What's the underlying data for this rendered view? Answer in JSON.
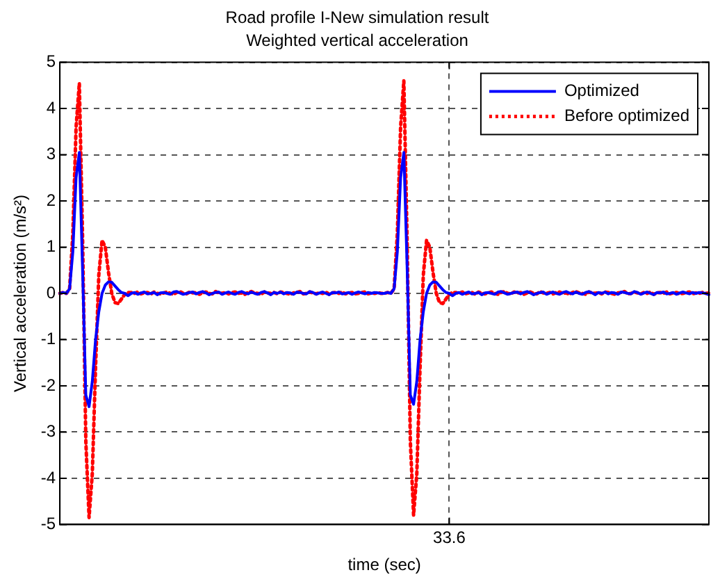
{
  "chart_data": {
    "type": "line",
    "title": "Road profile I-New simulation result",
    "subtitle": "Weighted vertical acceleration",
    "xlabel": "time (sec)",
    "ylabel": "Vertical acceleration (m/s²)",
    "categories": [
      null,
      null,
      null,
      null,
      null,
      null,
      null,
      null,
      null,
      null,
      null,
      null,
      null,
      null,
      null,
      null,
      null,
      null,
      null,
      null,
      null,
      null,
      null,
      null,
      null,
      null,
      null,
      null,
      null,
      null,
      null,
      null,
      null,
      null,
      null,
      null,
      null,
      null,
      null,
      null,
      null,
      null,
      null,
      null,
      null,
      null,
      null,
      null,
      null,
      null,
      null,
      null,
      null,
      null,
      null,
      null,
      null,
      null,
      null,
      null,
      null,
      null,
      null,
      null,
      null,
      null,
      null,
      null,
      null,
      null,
      null,
      null,
      null,
      null,
      null,
      null,
      null,
      null,
      null,
      null,
      null,
      null,
      null,
      null,
      null,
      null,
      null,
      null,
      null,
      null,
      null,
      null,
      null,
      null,
      null,
      null,
      null,
      null,
      null,
      null,
      null,
      null,
      null,
      null,
      null,
      null,
      null,
      null,
      null,
      null,
      null,
      null,
      null,
      null,
      null,
      null,
      null,
      null,
      null,
      null,
      "33.6",
      null,
      null,
      null,
      null,
      null,
      null,
      null,
      null,
      null,
      null,
      null,
      null,
      null,
      null,
      null,
      null,
      null,
      null,
      null,
      null,
      null,
      null,
      null,
      null,
      null,
      null,
      null,
      null,
      null,
      null,
      null,
      null,
      null,
      null,
      null,
      null,
      null,
      null,
      null,
      null,
      null,
      null,
      null,
      null,
      null,
      null,
      null,
      null,
      null,
      null,
      null,
      null,
      null,
      null,
      null,
      null,
      null,
      null,
      null,
      null,
      null,
      null,
      null,
      null,
      null,
      null,
      null,
      null,
      null,
      null,
      null,
      null,
      null,
      null,
      null,
      null,
      null,
      null,
      null,
      null
    ],
    "series": [
      {
        "name": "Optimized",
        "color": "#0000ff",
        "line_style": "solid",
        "values": [
          0,
          0.02,
          0,
          0.1,
          0.9,
          2.5,
          3.05,
          0.5,
          -2.2,
          -2.45,
          -1.9,
          -1.0,
          -0.4,
          0,
          0.18,
          0.25,
          0.24,
          0.16,
          0.08,
          0.02,
          0,
          -0.05,
          0,
          0.02,
          -0.02,
          0.01,
          0.03,
          -0.01,
          0,
          0.02,
          -0.03,
          0.01,
          0.02,
          0,
          -0.02,
          0.03,
          0.04,
          0.01,
          -0.02,
          0,
          0.02,
          0.03,
          -0.01,
          0.02,
          0.04,
          0.01,
          -0.03,
          0,
          0.02,
          0.03,
          -0.02,
          0.01,
          0.03,
          0,
          -0.02,
          0.02,
          0.04,
          0.01,
          -0.01,
          0.03,
          0,
          -0.02,
          0.02,
          0.04,
          0.01,
          -0.03,
          0.02,
          0,
          0.03,
          -0.01,
          0.02,
          0.01,
          -0.02,
          0.03,
          0.02,
          0,
          -0.01,
          0.04,
          0.02,
          -0.02,
          0.01,
          0.03,
          0,
          -0.03,
          0.02,
          0.01,
          0.03,
          -0.01,
          0,
          0.02,
          -0.02,
          0.01,
          0.03,
          0.01,
          -0.01,
          0.02,
          0,
          0.02,
          0.01,
          0,
          0,
          0.02,
          0,
          0.1,
          0.9,
          2.5,
          3.05,
          0.6,
          -2.2,
          -2.4,
          -1.9,
          -1.0,
          -0.4,
          0,
          0.18,
          0.25,
          0.24,
          0.16,
          0.08,
          0.02,
          0,
          -0.05,
          0,
          0.02,
          -0.02,
          0.01,
          0.03,
          -0.01,
          0,
          0.02,
          -0.03,
          0.01,
          0.02,
          0,
          -0.02,
          0.03,
          0.04,
          0.01,
          -0.02,
          0,
          0.02,
          0.03,
          -0.01,
          0.02,
          0.04,
          0.01,
          -0.03,
          0,
          0.02,
          0.03,
          -0.02,
          0.01,
          0.03,
          0,
          -0.02,
          0.02,
          0.04,
          0.01,
          -0.01,
          0.03,
          0,
          -0.02,
          0.02,
          0.04,
          0.01,
          -0.03,
          0.02,
          0,
          0.03,
          -0.01,
          0.02,
          0.01,
          -0.02,
          0.03,
          0.02,
          0,
          -0.01,
          0.04,
          0.02,
          -0.02,
          0.01,
          0.03,
          0,
          -0.03,
          0.02,
          0.01,
          0.03,
          -0.01,
          0,
          0.02,
          -0.02,
          0.01,
          0.03,
          0.01,
          -0.01,
          0.02,
          0,
          0.02,
          0.01,
          0,
          -0.03
        ]
      },
      {
        "name": "Before optimized",
        "color": "#ff0000",
        "line_style": "dotted",
        "values": [
          0,
          0.02,
          0,
          0.1,
          1.3,
          3.6,
          4.55,
          1.2,
          -3.2,
          -4.85,
          -3.9,
          -1.6,
          0.4,
          1.15,
          1.0,
          0.45,
          0,
          -0.2,
          -0.22,
          -0.12,
          -0.02,
          0.02,
          0.02,
          0,
          0.03,
          -0.01,
          0.01,
          0.02,
          -0.02,
          0.03,
          0,
          -0.01,
          0.01,
          0.03,
          0,
          -0.02,
          0.02,
          0.04,
          0,
          -0.01,
          0.03,
          0.01,
          0.02,
          -0.02,
          0.01,
          0.03,
          0,
          -0.01,
          0.04,
          0.01,
          0,
          0.02,
          -0.01,
          0.02,
          0.03,
          0,
          0.01,
          -0.02,
          0.02,
          0.04,
          0.01,
          0,
          -0.02,
          0.03,
          0.01,
          0,
          0.02,
          -0.01,
          0.03,
          0.02,
          0,
          -0.02,
          0.01,
          0.02,
          0.04,
          -0.01,
          0,
          0.03,
          0.01,
          -0.01,
          0.02,
          0,
          0.03,
          -0.02,
          0.01,
          0.02,
          0,
          0.03,
          -0.01,
          0.01,
          0.02,
          -0.01,
          0,
          0.02,
          0.03,
          -0.01,
          0.01,
          0,
          0.02,
          0,
          0,
          0.02,
          0,
          0.1,
          1.3,
          3.6,
          4.6,
          1.2,
          -3.2,
          -4.8,
          -3.9,
          -1.6,
          0.4,
          1.15,
          1.0,
          0.45,
          0,
          -0.2,
          -0.22,
          -0.12,
          -0.02,
          0.02,
          0.02,
          0,
          0.03,
          -0.01,
          0.01,
          0.02,
          -0.02,
          0.03,
          0,
          -0.01,
          0.01,
          0.03,
          0,
          -0.02,
          0.02,
          0.04,
          0,
          -0.01,
          0.03,
          0.01,
          0.02,
          -0.02,
          0.01,
          0.03,
          0,
          -0.01,
          0.04,
          0.01,
          0,
          0.02,
          -0.01,
          0.02,
          0.03,
          0,
          0.01,
          -0.02,
          0.02,
          0.04,
          0.01,
          0,
          -0.02,
          0.03,
          0.01,
          0,
          0.02,
          -0.01,
          0.03,
          0.02,
          0,
          -0.02,
          0.01,
          0.02,
          0.04,
          -0.01,
          0,
          0.03,
          0.01,
          -0.01,
          0.02,
          0,
          0.03,
          -0.02,
          0.01,
          0.02,
          0,
          0.03,
          -0.01,
          0.01,
          0.02,
          -0.01,
          0,
          0.02,
          0.03,
          -0.01,
          0.01,
          0,
          0.02,
          0,
          0.01
        ]
      }
    ],
    "ylim": [
      -5,
      5
    ],
    "yticks": [
      -5,
      -4,
      -3,
      -2,
      -1,
      0,
      1,
      2,
      3,
      4,
      5
    ],
    "grid": true,
    "legend": "top right"
  }
}
